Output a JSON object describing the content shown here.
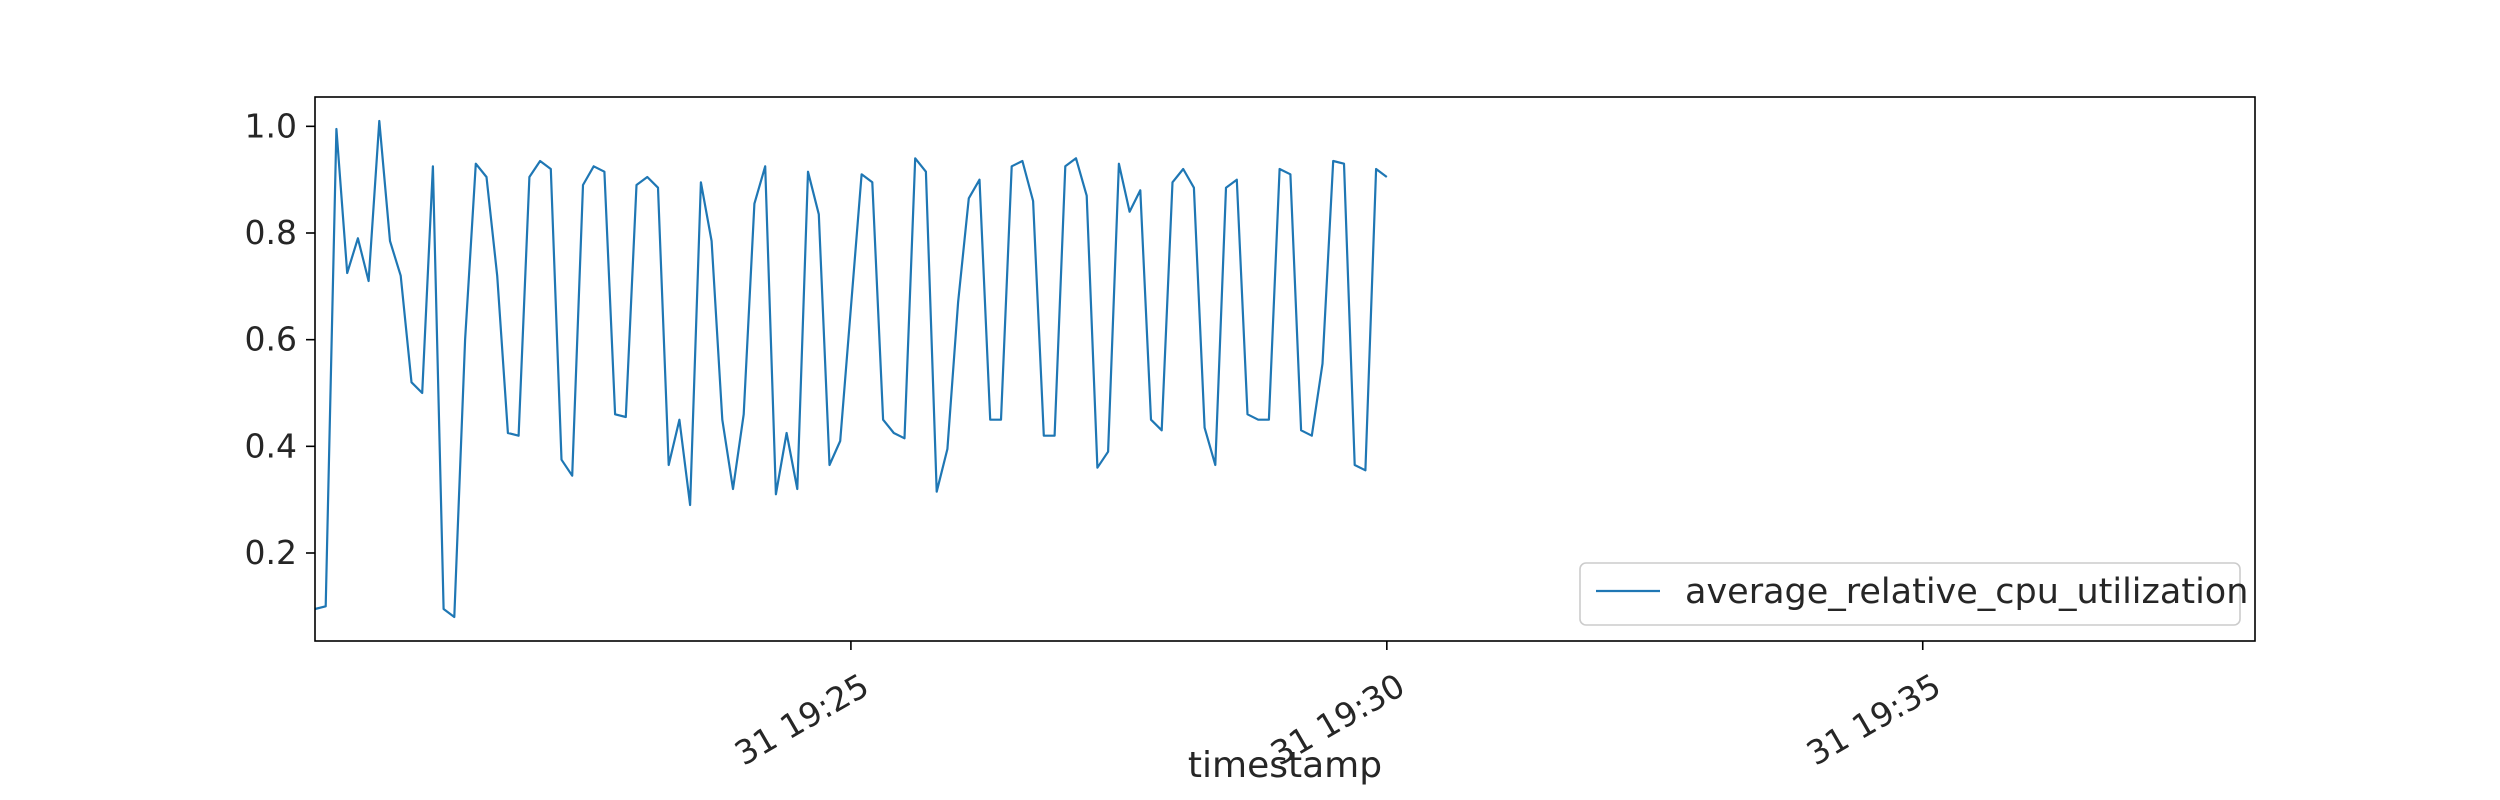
{
  "chart_data": {
    "type": "line",
    "title": "",
    "xlabel": "timestamp",
    "ylabel": "",
    "x_start": "19:20:00",
    "x_step_seconds": 6,
    "xlim": [
      "19:20:00",
      "19:38:06"
    ],
    "ylim": [
      0.035,
      1.055
    ],
    "y_ticks": [
      0.2,
      0.4,
      0.6,
      0.8,
      1.0
    ],
    "y_tick_labels": [
      "0.2",
      "0.4",
      "0.6",
      "0.8",
      "1.0"
    ],
    "x_ticks": [
      "19:25",
      "19:30",
      "19:35"
    ],
    "x_tick_labels": [
      "31 19:25",
      "31 19:30",
      "31 19:35"
    ],
    "legend_placement": "lower-right",
    "grid": false,
    "series": [
      {
        "name": "average_relative_cpu_utilization",
        "color": "#1f77b4",
        "values": [
          0.095,
          0.1,
          0.995,
          0.725,
          0.79,
          0.71,
          1.01,
          0.785,
          0.72,
          0.52,
          0.5,
          0.925,
          0.095,
          0.08,
          0.6,
          0.93,
          0.905,
          0.72,
          0.425,
          0.42,
          0.905,
          0.935,
          0.92,
          0.375,
          0.345,
          0.89,
          0.925,
          0.915,
          0.46,
          0.455,
          0.89,
          0.905,
          0.885,
          0.365,
          0.45,
          0.29,
          0.895,
          0.785,
          0.45,
          0.32,
          0.46,
          0.855,
          0.925,
          0.31,
          0.425,
          0.32,
          0.915,
          0.835,
          0.365,
          0.41,
          0.66,
          0.91,
          0.895,
          0.45,
          0.425,
          0.415,
          0.94,
          0.915,
          0.315,
          0.395,
          0.67,
          0.865,
          0.9,
          0.45,
          0.45,
          0.925,
          0.935,
          0.86,
          0.42,
          0.42,
          0.925,
          0.94,
          0.87,
          0.36,
          0.39,
          0.93,
          0.84,
          0.88,
          0.45,
          0.43,
          0.895,
          0.92,
          0.885,
          0.435,
          0.365,
          0.885,
          0.9,
          0.46,
          0.45,
          0.45,
          0.92,
          0.91,
          0.43,
          0.42,
          0.555,
          0.935,
          0.93,
          0.365,
          0.355,
          0.92,
          0.905
        ]
      }
    ]
  }
}
